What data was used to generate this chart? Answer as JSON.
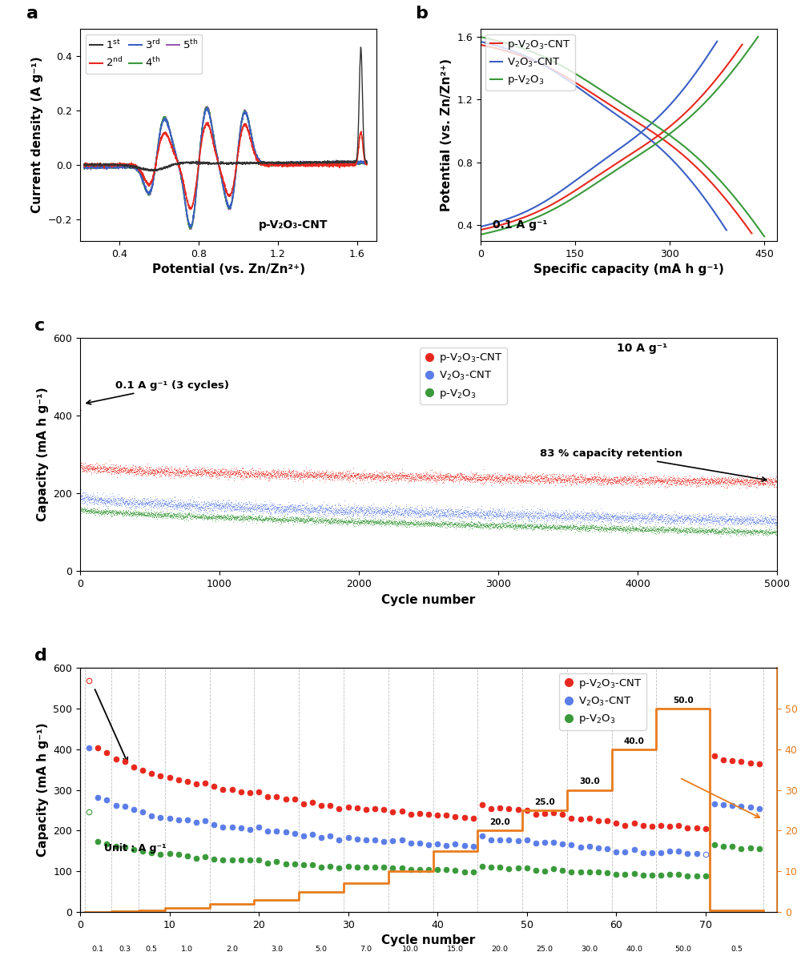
{
  "panel_a": {
    "title": "p-V₂O₃-CNT",
    "xlabel": "Potential (vs. Zn/Zn²⁺)",
    "ylabel": "Current density (A g⁻¹)",
    "xlim": [
      0.2,
      1.7
    ],
    "ylim": [
      -0.28,
      0.5
    ],
    "xticks": [
      0.4,
      0.8,
      1.2,
      1.6
    ],
    "yticks": [
      -0.2,
      0.0,
      0.2,
      0.4
    ],
    "legend_entries": [
      "1st",
      "2nd",
      "3rd",
      "4th",
      "5th"
    ],
    "legend_colors": [
      "#333333",
      "#e8281e",
      "#3a5fc5",
      "#3a9a3a",
      "#9b59b6"
    ]
  },
  "panel_b": {
    "xlabel": "Specific capacity (mA h g⁻¹)",
    "ylabel": "Potential (vs. Zn/Zn²⁺)",
    "xlim": [
      0,
      470
    ],
    "ylim": [
      0.3,
      1.65
    ],
    "xticks": [
      0,
      150,
      300,
      450
    ],
    "yticks": [
      0.4,
      0.8,
      1.2,
      1.6
    ],
    "annotation": "0.1 A g⁻¹",
    "legend_entries": [
      "p-V₂O₃-CNT",
      "V₂O₃-CNT",
      "p-V₂O₃"
    ],
    "legend_colors": [
      "#e8281e",
      "#3a5fc5",
      "#3a9a3a"
    ]
  },
  "panel_c": {
    "xlabel": "Cycle number",
    "ylabel": "Capacity (mA h g⁻¹)",
    "xlim": [
      0,
      5000
    ],
    "ylim": [
      0,
      600
    ],
    "xticks": [
      0,
      1000,
      2000,
      3000,
      4000,
      5000
    ],
    "yticks": [
      0,
      200,
      400,
      600
    ],
    "annotation1": "0.1 A g⁻¹ (3 cycles)",
    "annotation2": "10 A g⁻¹",
    "annotation3": "83 % capacity retention",
    "legend_entries": [
      "p-V₂O₃-CNT",
      "V₂O₃-CNT",
      "p-V₂O₃"
    ],
    "legend_colors": [
      "#e8281e",
      "#5b7de8",
      "#3a9a3a"
    ]
  },
  "panel_d": {
    "xlabel": "Cycle number",
    "ylabel_left": "Capacity (mA h g⁻¹)",
    "ylabel_right": "Current density (A g⁻¹)",
    "xlim": [
      0,
      78
    ],
    "ylim_left": [
      0,
      600
    ],
    "ylim_right": [
      0,
      60
    ],
    "xticks": [
      0,
      10,
      20,
      30,
      40,
      50,
      60,
      70
    ],
    "yticks_left": [
      0,
      100,
      200,
      300,
      400,
      500,
      600
    ],
    "yticks_right": [
      0,
      10,
      20,
      30,
      40,
      50
    ],
    "annotation": "Unit : A g⁻¹",
    "legend_entries": [
      "p-V₂O₃-CNT",
      "V₂O₃-CNT",
      "p-V₂O₃"
    ],
    "legend_colors": [
      "#e8281e",
      "#5b7de8",
      "#3a9a3a"
    ],
    "orange_color": "#e87c1e"
  },
  "bg_color": "#ffffff",
  "label_fontsize": 11,
  "tick_fontsize": 9,
  "legend_fontsize": 9.5
}
